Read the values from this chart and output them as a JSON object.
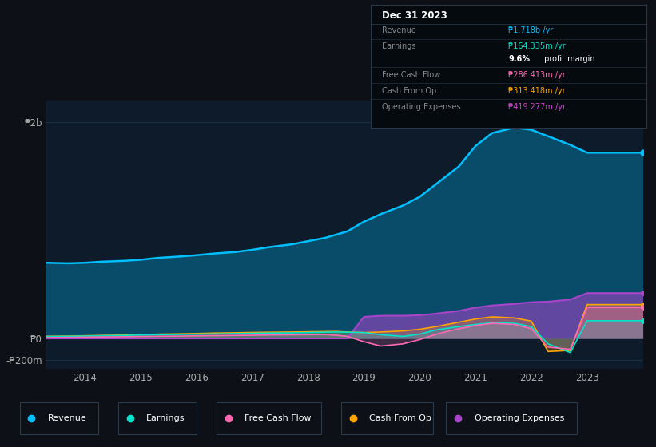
{
  "bg_color": "#0d1117",
  "plot_bg_color": "#0d1b2a",
  "title": "Dec 31 2023",
  "info_box_rows": [
    {
      "label": "Revenue",
      "value": "₱1.718b /yr",
      "color": "#00bfff"
    },
    {
      "label": "Earnings",
      "value": "₱164.335m /yr",
      "color": "#00e5cc"
    },
    {
      "label": "",
      "value": "9.6% profit margin",
      "color": "#ffffff"
    },
    {
      "label": "Free Cash Flow",
      "value": "₱286.413m /yr",
      "color": "#ff69b4"
    },
    {
      "label": "Cash From Op",
      "value": "₱313.418m /yr",
      "color": "#ffa500"
    },
    {
      "label": "Operating Expenses",
      "value": "₱419.277m /yr",
      "color": "#cc44cc"
    }
  ],
  "yticks_labels": [
    "₱2b",
    "₱0",
    "-₱200m"
  ],
  "ytick_vals": [
    2000,
    0,
    -200
  ],
  "xtick_labels": [
    "2014",
    "2015",
    "2016",
    "2017",
    "2018",
    "2019",
    "2020",
    "2021",
    "2022",
    "2023"
  ],
  "xtick_positions": [
    2014,
    2015,
    2016,
    2017,
    2018,
    2019,
    2020,
    2021,
    2022,
    2023
  ],
  "years": [
    2013.3,
    2013.7,
    2014.0,
    2014.3,
    2014.7,
    2015.0,
    2015.3,
    2015.7,
    2016.0,
    2016.3,
    2016.7,
    2017.0,
    2017.3,
    2017.7,
    2018.0,
    2018.3,
    2018.5,
    2018.7,
    2019.0,
    2019.3,
    2019.7,
    2020.0,
    2020.3,
    2020.7,
    2021.0,
    2021.3,
    2021.7,
    2022.0,
    2022.3,
    2022.7,
    2023.0,
    2023.5,
    2024.0
  ],
  "revenue": [
    700,
    695,
    700,
    710,
    718,
    728,
    745,
    758,
    770,
    785,
    800,
    820,
    845,
    870,
    900,
    930,
    960,
    990,
    1080,
    1150,
    1230,
    1310,
    1430,
    1590,
    1780,
    1900,
    1950,
    1930,
    1870,
    1790,
    1718,
    1718,
    1718
  ],
  "earnings": [
    18,
    20,
    22,
    25,
    28,
    32,
    35,
    38,
    40,
    42,
    45,
    48,
    50,
    52,
    55,
    58,
    60,
    58,
    55,
    35,
    20,
    40,
    80,
    110,
    130,
    145,
    140,
    110,
    -50,
    -130,
    164,
    164,
    164
  ],
  "free_cash_flow": [
    8,
    10,
    12,
    14,
    16,
    18,
    20,
    22,
    24,
    26,
    28,
    30,
    32,
    34,
    35,
    36,
    30,
    20,
    -30,
    -70,
    -50,
    -10,
    40,
    90,
    120,
    140,
    130,
    90,
    -80,
    -100,
    286,
    286,
    286
  ],
  "cash_from_op": [
    20,
    22,
    25,
    28,
    32,
    36,
    40,
    43,
    46,
    50,
    53,
    56,
    58,
    60,
    62,
    64,
    65,
    60,
    55,
    60,
    70,
    85,
    110,
    150,
    180,
    200,
    190,
    160,
    -120,
    -110,
    313,
    313,
    313
  ],
  "operating_expenses": [
    0,
    0,
    0,
    0,
    0,
    0,
    0,
    0,
    0,
    0,
    0,
    0,
    0,
    0,
    0,
    0,
    0,
    0,
    200,
    210,
    210,
    215,
    230,
    255,
    285,
    305,
    320,
    335,
    340,
    360,
    419,
    419,
    419
  ],
  "revenue_color": "#00bfff",
  "earnings_color": "#00e5cc",
  "free_cash_flow_color": "#ff69b4",
  "cash_from_op_color": "#ffa500",
  "operating_expenses_color": "#aa44cc",
  "ylim": [
    -280,
    2200
  ],
  "xlim": [
    2013.3,
    2024.0
  ],
  "grid_color": "#1e3448",
  "legend_items": [
    {
      "label": "Revenue",
      "color": "#00bfff"
    },
    {
      "label": "Earnings",
      "color": "#00e5cc"
    },
    {
      "label": "Free Cash Flow",
      "color": "#ff69b4"
    },
    {
      "label": "Cash From Op",
      "color": "#ffa500"
    },
    {
      "label": "Operating Expenses",
      "color": "#aa44cc"
    }
  ]
}
